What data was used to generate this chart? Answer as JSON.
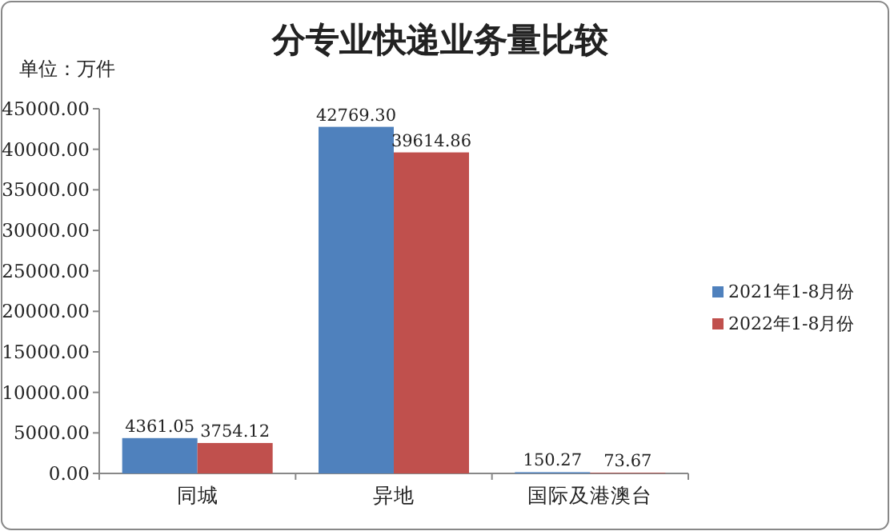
{
  "chart_data": {
    "type": "bar",
    "title": "分专业快递业务量比较",
    "ylabel": "单位：万件",
    "categories": [
      "同城",
      "异地",
      "国际及港澳台"
    ],
    "series": [
      {
        "name": "2021年1-8月份",
        "color": "#4f81bd",
        "values": [
          4361.05,
          42769.3,
          150.27
        ],
        "value_labels": [
          "4361.05",
          "42769.30",
          "150.27"
        ]
      },
      {
        "name": "2022年1-8月份",
        "color": "#c0504d",
        "values": [
          3754.12,
          39614.86,
          73.67
        ],
        "value_labels": [
          "3754.12",
          "39614.86",
          "73.67"
        ]
      }
    ],
    "ylim": [
      0,
      45000
    ],
    "yticks": [
      {
        "value": 0,
        "label": "0.00"
      },
      {
        "value": 5000,
        "label": "5000.00"
      },
      {
        "value": 10000,
        "label": "10000.00"
      },
      {
        "value": 15000,
        "label": "15000.00"
      },
      {
        "value": 20000,
        "label": "20000.00"
      },
      {
        "value": 25000,
        "label": "25000.00"
      },
      {
        "value": 30000,
        "label": "30000.00"
      },
      {
        "value": 35000,
        "label": "35000.00"
      },
      {
        "value": 40000,
        "label": "40000.00"
      },
      {
        "value": 45000,
        "label": "45000.00"
      }
    ],
    "legend": "right"
  }
}
